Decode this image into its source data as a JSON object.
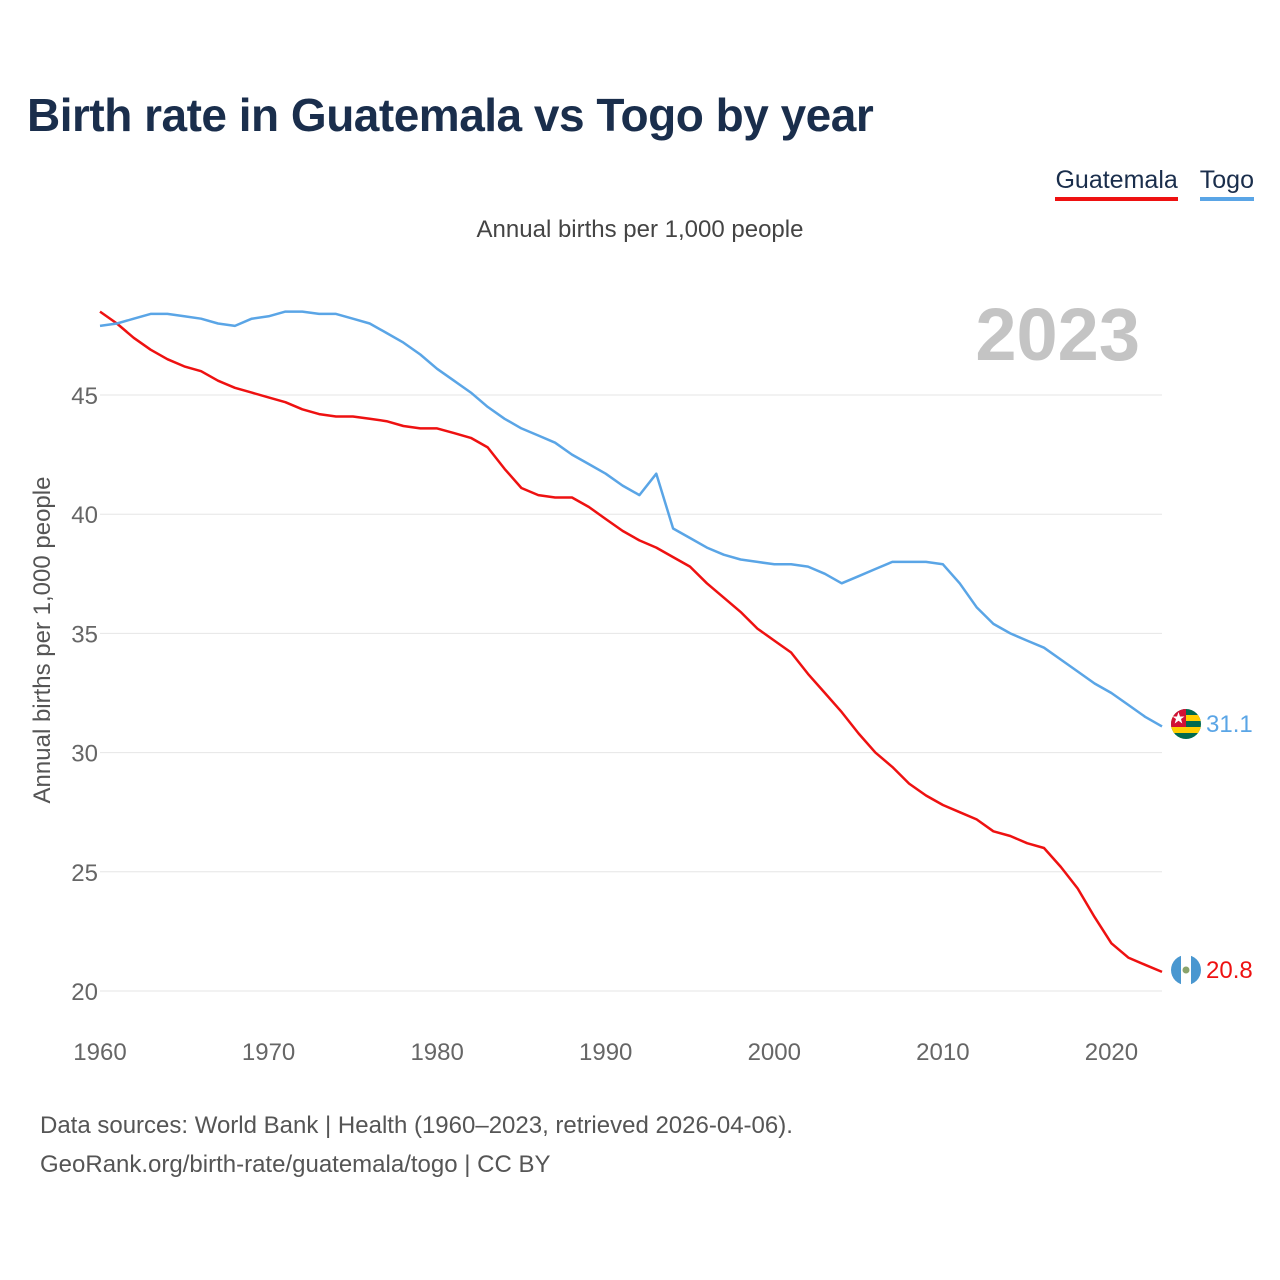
{
  "title": "Birth rate in Guatemala vs Togo by year",
  "subtitle": "Annual births per 1,000 people",
  "legend": [
    {
      "label": "Guatemala",
      "color": "#ee1111"
    },
    {
      "label": "Togo",
      "color": "#5aa5e6"
    }
  ],
  "year_watermark": "2023",
  "footer": {
    "line1": "Data sources: World Bank | Health (1960–2023, retrieved 2026-04-06).",
    "line2": "GeoRank.org/birth-rate/guatemala/togo | CC BY"
  },
  "chart_data": {
    "type": "line",
    "title": "Birth rate in Guatemala vs Togo by year",
    "xlabel": "",
    "ylabel": "Annual births per 1,000 people",
    "xlim": [
      1960,
      2023
    ],
    "ylim": [
      20,
      48.5
    ],
    "x_ticks": [
      1960,
      1970,
      1980,
      1990,
      2000,
      2010,
      2020
    ],
    "y_ticks": [
      20,
      25,
      30,
      35,
      40,
      45
    ],
    "grid": true,
    "x": [
      1960,
      1961,
      1962,
      1963,
      1964,
      1965,
      1966,
      1967,
      1968,
      1969,
      1970,
      1971,
      1972,
      1973,
      1974,
      1975,
      1976,
      1977,
      1978,
      1979,
      1980,
      1981,
      1982,
      1983,
      1984,
      1985,
      1986,
      1987,
      1988,
      1989,
      1990,
      1991,
      1992,
      1993,
      1994,
      1995,
      1996,
      1997,
      1998,
      1999,
      2000,
      2001,
      2002,
      2003,
      2004,
      2005,
      2006,
      2007,
      2008,
      2009,
      2010,
      2011,
      2012,
      2013,
      2014,
      2015,
      2016,
      2017,
      2018,
      2019,
      2020,
      2021,
      2022,
      2023
    ],
    "series": [
      {
        "name": "Guatemala",
        "color": "#ee1111",
        "end_label": "20.8",
        "values": [
          48.5,
          48.0,
          47.4,
          46.9,
          46.5,
          46.2,
          46.0,
          45.6,
          45.3,
          45.1,
          44.9,
          44.7,
          44.4,
          44.2,
          44.1,
          44.1,
          44.0,
          43.9,
          43.7,
          43.6,
          43.6,
          43.4,
          43.2,
          42.8,
          41.9,
          41.1,
          40.8,
          40.7,
          40.7,
          40.3,
          39.8,
          39.3,
          38.9,
          38.6,
          38.2,
          37.8,
          37.1,
          36.5,
          35.9,
          35.2,
          34.7,
          34.2,
          33.3,
          32.5,
          31.7,
          30.8,
          30.0,
          29.4,
          28.7,
          28.2,
          27.8,
          27.5,
          27.2,
          26.7,
          26.5,
          26.2,
          26.0,
          25.2,
          24.3,
          23.1,
          22.0,
          21.4,
          21.1,
          20.8
        ]
      },
      {
        "name": "Togo",
        "color": "#5aa5e6",
        "end_label": "31.1",
        "values": [
          47.9,
          48.0,
          48.2,
          48.4,
          48.4,
          48.3,
          48.2,
          48.0,
          47.9,
          48.2,
          48.3,
          48.5,
          48.5,
          48.4,
          48.4,
          48.2,
          48.0,
          47.6,
          47.2,
          46.7,
          46.1,
          45.6,
          45.1,
          44.5,
          44.0,
          43.6,
          43.3,
          43.0,
          42.5,
          42.1,
          41.7,
          41.2,
          40.8,
          41.7,
          39.4,
          39.0,
          38.6,
          38.3,
          38.1,
          38.0,
          37.9,
          37.9,
          37.8,
          37.5,
          37.1,
          37.4,
          37.7,
          38.0,
          38.0,
          38.0,
          37.9,
          37.1,
          36.1,
          35.4,
          35.0,
          34.7,
          34.4,
          33.9,
          33.4,
          32.9,
          32.5,
          32.0,
          31.5,
          31.1
        ]
      }
    ]
  }
}
